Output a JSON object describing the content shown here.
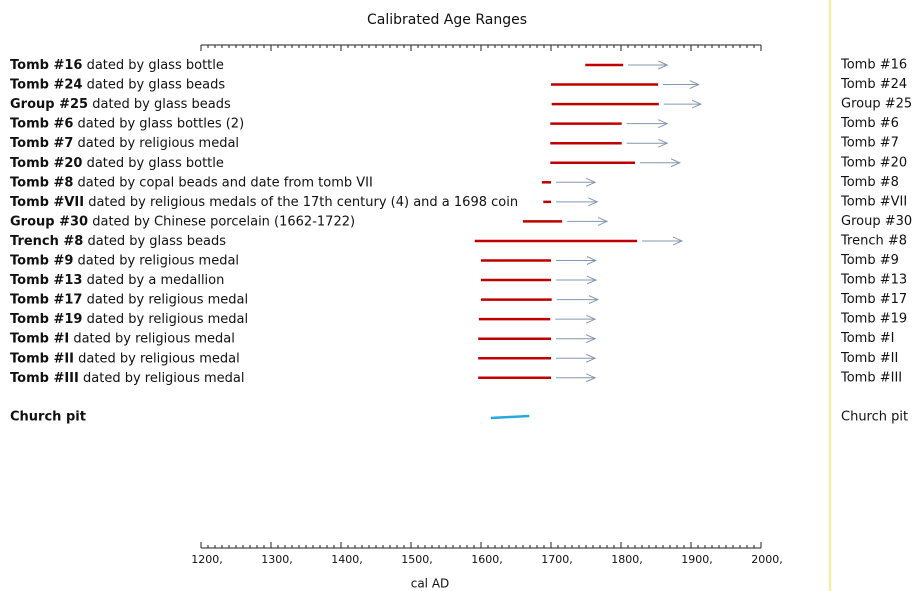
{
  "chart_data": {
    "type": "range",
    "title": "Calibrated Age Ranges",
    "xlabel": "cal AD",
    "xlim": [
      1200,
      2000
    ],
    "xticks": [
      {
        "value": 1200,
        "label": "1200,"
      },
      {
        "value": 1300,
        "label": "1300,"
      },
      {
        "value": 1400,
        "label": "1400,"
      },
      {
        "value": 1500,
        "label": "1500,"
      },
      {
        "value": 1600,
        "label": "1600,"
      },
      {
        "value": 1700,
        "label": "1700,"
      },
      {
        "value": 1800,
        "label": "1800,"
      },
      {
        "value": 1900,
        "label": "1900,"
      },
      {
        "value": 2000,
        "label": "2000,"
      }
    ],
    "bar_color": "#c00000",
    "arrow_color": "#8497b0",
    "highlight_color": "#29a8e0",
    "rows": [
      {
        "name": "Tomb #16",
        "description": "dated by glass bottle",
        "start": 1749,
        "end": 1803,
        "arrow_end": 1866
      },
      {
        "name": "Tomb #24",
        "description": "dated by glass beads",
        "start": 1700,
        "end": 1853,
        "arrow_end": 1911
      },
      {
        "name": "Group #25",
        "description": "dated by glass beads",
        "start": 1701,
        "end": 1854,
        "arrow_end": 1914
      },
      {
        "name": "Tomb #6",
        "description": "dated by glass bottles (2)",
        "start": 1699,
        "end": 1801,
        "arrow_end": 1866
      },
      {
        "name": "Tomb #7",
        "description": "dated by religious medal",
        "start": 1699,
        "end": 1801,
        "arrow_end": 1866
      },
      {
        "name": "Tomb #20",
        "description": "dated by glass bottle",
        "start": 1699,
        "end": 1820,
        "arrow_end": 1884
      },
      {
        "name": "Tomb #8",
        "description": "dated by copal beads and date from tomb VII",
        "start": 1687,
        "end": 1700,
        "arrow_end": 1763
      },
      {
        "name": "Tomb #VII",
        "description": "dated by religious medals of the 17th century (4) and a 1698 coin",
        "start": 1689,
        "end": 1700,
        "arrow_end": 1766
      },
      {
        "name": "Group #30",
        "description": "dated by Chinese porcelain (1662-1722)",
        "start": 1660,
        "end": 1716,
        "arrow_end": 1780
      },
      {
        "name": "Trench #8",
        "description": "dated by glass beads",
        "start": 1591,
        "end": 1823,
        "arrow_end": 1887
      },
      {
        "name": "Tomb #9",
        "description": "dated by religious medal",
        "start": 1600,
        "end": 1700,
        "arrow_end": 1764
      },
      {
        "name": "Tomb #13",
        "description": "dated by a medallion",
        "start": 1600,
        "end": 1700,
        "arrow_end": 1764
      },
      {
        "name": "Tomb #17",
        "description": "dated by religious medal",
        "start": 1600,
        "end": 1701,
        "arrow_end": 1767
      },
      {
        "name": "Tomb #19",
        "description": "dated by religious medal",
        "start": 1597,
        "end": 1699,
        "arrow_end": 1763
      },
      {
        "name": "Tomb #I",
        "description": "dated by religious medal",
        "start": 1596,
        "end": 1700,
        "arrow_end": 1763
      },
      {
        "name": "Tomb #II",
        "description": "dated by religious medal",
        "start": 1596,
        "end": 1700,
        "arrow_end": 1763
      },
      {
        "name": "Tomb #III",
        "description": "dated by religious medal",
        "start": 1596,
        "end": 1700,
        "arrow_end": 1763
      }
    ],
    "highlight": {
      "name": "Church pit",
      "start": 1614,
      "end": 1669
    }
  }
}
